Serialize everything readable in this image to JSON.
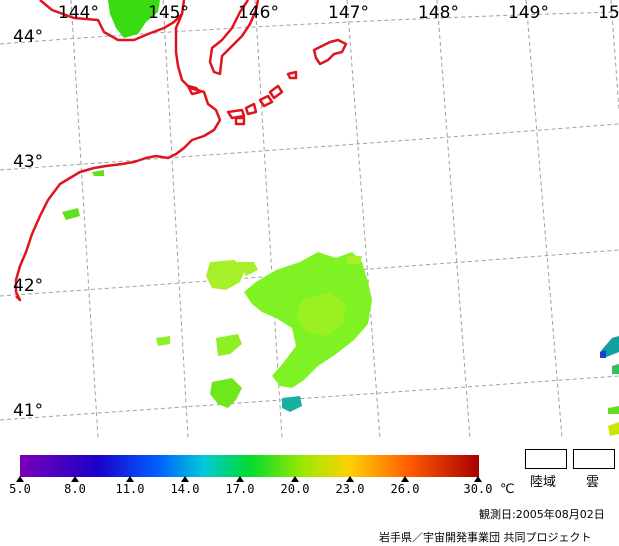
{
  "map": {
    "longitude_labels": [
      "144°",
      "145°",
      "146°",
      "147°",
      "148°",
      "149°",
      "15"
    ],
    "latitude_labels": [
      "44°",
      "43°",
      "42°",
      "41°"
    ],
    "coastline_color": "#e0141e",
    "grid_color": "#a0a0a0"
  },
  "colorbar": {
    "ticks": [
      "5.0",
      "8.0",
      "11.0",
      "14.0",
      "17.0",
      "20.0",
      "23.0",
      "26.0",
      "30.0"
    ],
    "unit": "℃",
    "colors": [
      "#7a00b8",
      "#0000d0",
      "#0088ff",
      "#00d0c0",
      "#00e000",
      "#c8e600",
      "#ffd000",
      "#ff6a00",
      "#b00000"
    ]
  },
  "legend": {
    "land_label": "陸域",
    "cloud_label": "雲"
  },
  "observation": {
    "label": "観測日:2005年08月02日"
  },
  "credit": {
    "text": "岩手県／宇宙開発事業団 共同プロジェクト"
  }
}
